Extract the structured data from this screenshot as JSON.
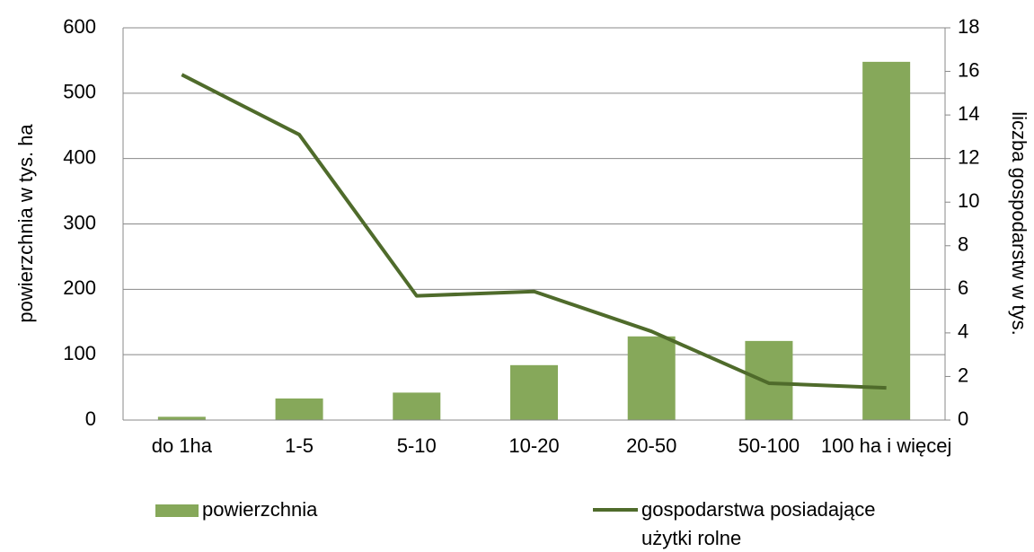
{
  "chart_data": {
    "type": "bar_line",
    "categories": [
      "do 1ha",
      "1-5",
      "5-10",
      "10-20",
      "20-50",
      "50-100",
      "100 ha i więcej"
    ],
    "series": [
      {
        "name": "powierzchnia",
        "color": "#86a85a",
        "type": "bar",
        "values": [
          5,
          33,
          42,
          84,
          128,
          121,
          548
        ]
      },
      {
        "name": "gospodarstwa posiadające użytki rolne",
        "color": "#4f6b2b",
        "type": "line",
        "axis": "y2",
        "values": [
          15.85,
          13.1,
          5.7,
          5.9,
          4.07,
          1.69,
          1.48
        ]
      }
    ],
    "ylabel": "powierzchnia w tys. ha",
    "y2label": "liczba gospodarstw w tys.",
    "ylim": [
      0,
      600
    ],
    "yticks": [
      0,
      100,
      200,
      300,
      400,
      500,
      600
    ],
    "y2lim": [
      0,
      18
    ],
    "y2ticks": [
      0,
      2,
      4,
      6,
      8,
      10,
      12,
      14,
      16,
      18
    ],
    "grid": true,
    "legend": "bottom"
  }
}
